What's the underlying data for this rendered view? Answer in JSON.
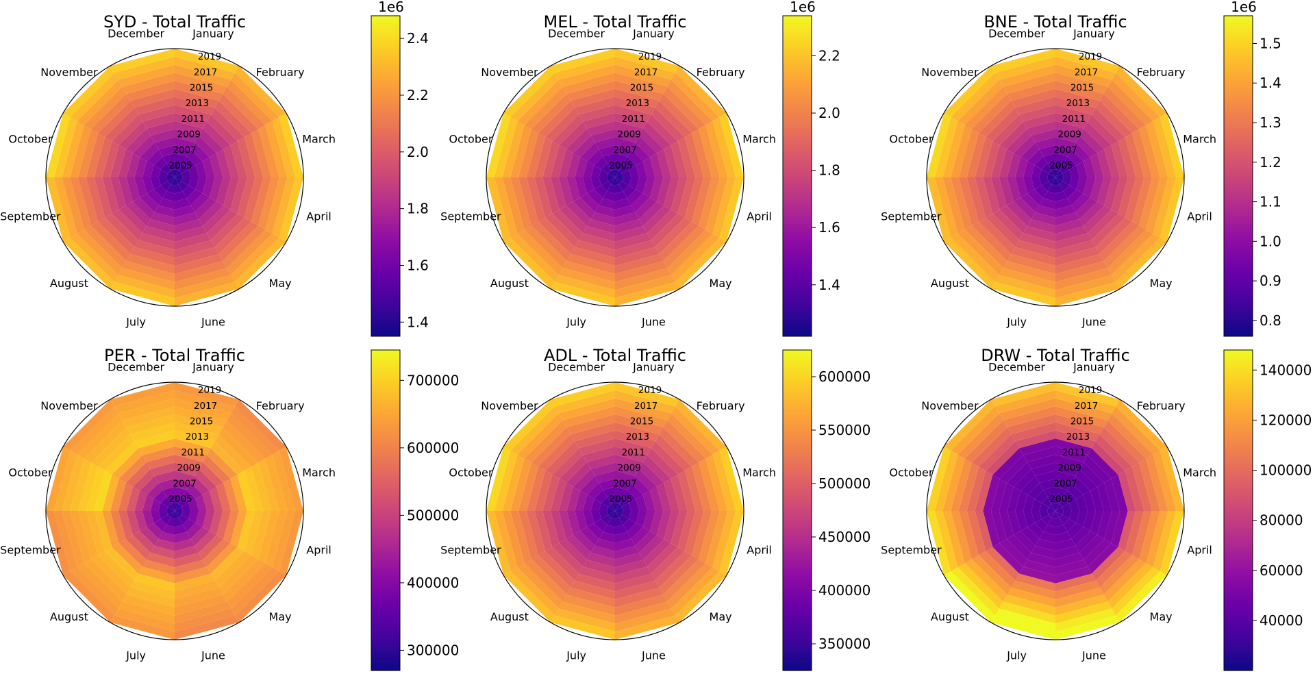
{
  "months": [
    "January",
    "February",
    "March",
    "April",
    "May",
    "June",
    "July",
    "August",
    "September",
    "October",
    "November",
    "December"
  ],
  "year_labels": [
    "2005",
    "2007",
    "2009",
    "2011",
    "2013",
    "2015",
    "2017",
    "2019"
  ],
  "colormap": [
    "#0d0887",
    "#41049d",
    "#6a00a8",
    "#8f0da4",
    "#b12a90",
    "#cc4778",
    "#e16462",
    "#f2844b",
    "#fca636",
    "#fcce25",
    "#f0f921"
  ],
  "chart_data": [
    {
      "type": "heatmap",
      "subtype": "polar",
      "title": "SYD - Total Traffic",
      "years": [
        2004,
        2019
      ],
      "clim": [
        1350000,
        2480000
      ],
      "cbar_ticks": [
        "1.4",
        "1.6",
        "1.8",
        "2.0",
        "2.2",
        "2.4"
      ],
      "cbar_tick_values": [
        1400000,
        1600000,
        1800000,
        2000000,
        2200000,
        2400000
      ],
      "cbar_offset": "1e6",
      "peak_month": "October",
      "pattern": "growth"
    },
    {
      "type": "heatmap",
      "subtype": "polar",
      "title": "MEL - Total Traffic",
      "years": [
        2004,
        2019
      ],
      "clim": [
        1220000,
        2340000
      ],
      "cbar_ticks": [
        "1.4",
        "1.6",
        "1.8",
        "2.0",
        "2.2"
      ],
      "cbar_tick_values": [
        1400000,
        1600000,
        1800000,
        2000000,
        2200000
      ],
      "cbar_offset": "1e6",
      "peak_month": "October",
      "pattern": "growth"
    },
    {
      "type": "heatmap",
      "subtype": "polar",
      "title": "BNE - Total Traffic",
      "years": [
        2004,
        2019
      ],
      "clim": [
        760000,
        1570000
      ],
      "cbar_ticks": [
        "0.8",
        "0.9",
        "1.0",
        "1.1",
        "1.2",
        "1.3",
        "1.4",
        "1.5"
      ],
      "cbar_tick_values": [
        800000,
        900000,
        1000000,
        1100000,
        1200000,
        1300000,
        1400000,
        1500000
      ],
      "cbar_offset": "1e6",
      "peak_month": "October",
      "pattern": "growth"
    },
    {
      "type": "heatmap",
      "subtype": "polar",
      "title": "PER - Total Traffic",
      "years": [
        2004,
        2019
      ],
      "clim": [
        270000,
        745000
      ],
      "cbar_ticks": [
        "300000",
        "400000",
        "500000",
        "600000",
        "700000"
      ],
      "cbar_tick_values": [
        300000,
        400000,
        500000,
        600000,
        700000
      ],
      "cbar_offset": "",
      "peak_month": "October",
      "pattern": "boom"
    },
    {
      "type": "heatmap",
      "subtype": "polar",
      "title": "ADL - Total Traffic",
      "years": [
        2004,
        2019
      ],
      "clim": [
        325000,
        625000
      ],
      "cbar_ticks": [
        "350000",
        "400000",
        "450000",
        "500000",
        "550000",
        "600000"
      ],
      "cbar_tick_values": [
        350000,
        400000,
        450000,
        500000,
        550000,
        600000
      ],
      "cbar_offset": "",
      "peak_month": "October",
      "pattern": "growth"
    },
    {
      "type": "heatmap",
      "subtype": "polar",
      "title": "DRW - Total Traffic",
      "years": [
        2004,
        2019
      ],
      "clim": [
        20000,
        148000
      ],
      "cbar_ticks": [
        "40000",
        "60000",
        "80000",
        "100000",
        "120000",
        "140000"
      ],
      "cbar_tick_values": [
        40000,
        60000,
        80000,
        100000,
        120000,
        140000
      ],
      "cbar_offset": "",
      "peak_month": "July",
      "pattern": "jump"
    }
  ]
}
